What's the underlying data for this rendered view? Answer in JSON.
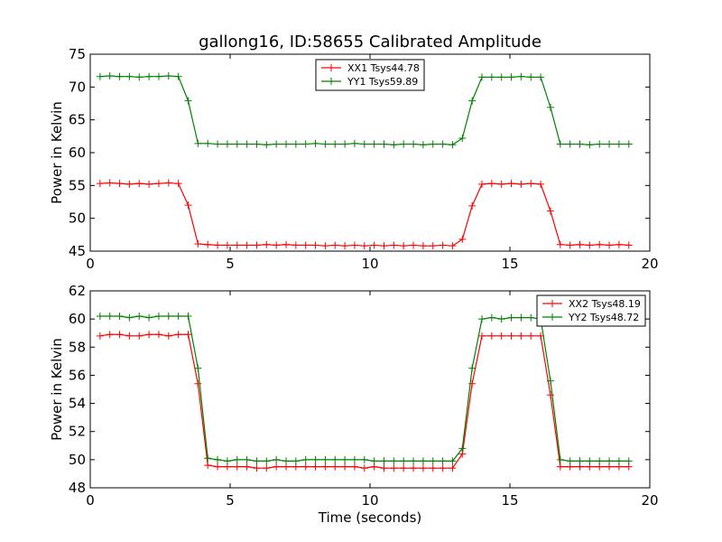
{
  "figure": {
    "title": "gallong16, ID:58655 Calibrated Amplitude"
  },
  "chart_data": [
    {
      "type": "line",
      "title": "gallong16, ID:58655 Calibrated Amplitude",
      "xlabel": "",
      "ylabel": "Power in Kelvin",
      "xlim": [
        0,
        20
      ],
      "ylim": [
        45,
        75
      ],
      "xticks": [
        0,
        5,
        10,
        15,
        20
      ],
      "yticks": [
        45,
        50,
        55,
        60,
        65,
        70,
        75
      ],
      "grid": false,
      "legend_position": "top-center",
      "x": [
        0.35,
        0.7,
        1.05,
        1.4,
        1.75,
        2.1,
        2.45,
        2.8,
        3.15,
        3.5,
        3.85,
        4.2,
        4.55,
        4.9,
        5.25,
        5.6,
        5.95,
        6.3,
        6.65,
        7.0,
        7.35,
        7.7,
        8.05,
        8.4,
        8.75,
        9.1,
        9.45,
        9.8,
        10.15,
        10.5,
        10.85,
        11.2,
        11.55,
        11.9,
        12.25,
        12.6,
        12.95,
        13.3,
        13.65,
        14.0,
        14.35,
        14.7,
        15.05,
        15.4,
        15.75,
        16.1,
        16.45,
        16.8,
        17.15,
        17.5,
        17.85,
        18.2,
        18.55,
        18.9,
        19.25
      ],
      "series": [
        {
          "name": "XX1 Tsys44.78",
          "color": "#ff0000",
          "values": [
            55.3,
            55.4,
            55.3,
            55.2,
            55.3,
            55.2,
            55.3,
            55.4,
            55.3,
            52.0,
            46.1,
            46.0,
            45.9,
            45.9,
            45.9,
            45.9,
            45.9,
            46.0,
            45.9,
            46.0,
            45.9,
            45.9,
            45.9,
            45.8,
            45.9,
            45.8,
            45.9,
            45.8,
            45.9,
            45.8,
            45.9,
            45.8,
            45.9,
            45.8,
            45.8,
            45.9,
            45.8,
            46.8,
            51.9,
            55.2,
            55.3,
            55.2,
            55.3,
            55.2,
            55.3,
            55.2,
            51.1,
            46.0,
            45.9,
            46.0,
            45.9,
            46.0,
            45.9,
            46.0,
            45.9
          ]
        },
        {
          "name": "YY1 Tsys59.89",
          "color": "#008000",
          "values": [
            71.6,
            71.7,
            71.6,
            71.6,
            71.5,
            71.6,
            71.6,
            71.7,
            71.6,
            67.9,
            61.4,
            61.4,
            61.3,
            61.3,
            61.3,
            61.3,
            61.3,
            61.2,
            61.3,
            61.3,
            61.3,
            61.3,
            61.4,
            61.3,
            61.3,
            61.3,
            61.4,
            61.3,
            61.3,
            61.3,
            61.2,
            61.3,
            61.3,
            61.2,
            61.3,
            61.3,
            61.2,
            62.2,
            67.9,
            71.5,
            71.5,
            71.5,
            71.5,
            71.6,
            71.5,
            71.5,
            66.9,
            61.3,
            61.3,
            61.3,
            61.2,
            61.3,
            61.3,
            61.3,
            61.3
          ]
        }
      ]
    },
    {
      "type": "line",
      "title": "",
      "xlabel": "Time (seconds)",
      "ylabel": "Power in Kelvin",
      "xlim": [
        0,
        20
      ],
      "ylim": [
        48,
        62
      ],
      "xticks": [
        0,
        5,
        10,
        15,
        20
      ],
      "yticks": [
        48,
        50,
        52,
        54,
        56,
        58,
        60,
        62
      ],
      "grid": false,
      "legend_position": "top-right",
      "x": [
        0.35,
        0.7,
        1.05,
        1.4,
        1.75,
        2.1,
        2.45,
        2.8,
        3.15,
        3.5,
        3.85,
        4.2,
        4.55,
        4.9,
        5.25,
        5.6,
        5.95,
        6.3,
        6.65,
        7.0,
        7.35,
        7.7,
        8.05,
        8.4,
        8.75,
        9.1,
        9.45,
        9.8,
        10.15,
        10.5,
        10.85,
        11.2,
        11.55,
        11.9,
        12.25,
        12.6,
        12.95,
        13.3,
        13.65,
        14.0,
        14.35,
        14.7,
        15.05,
        15.4,
        15.75,
        16.1,
        16.45,
        16.8,
        17.15,
        17.5,
        17.85,
        18.2,
        18.55,
        18.9,
        19.25
      ],
      "series": [
        {
          "name": "XX2 Tsys48.19",
          "color": "#ff0000",
          "values": [
            58.8,
            58.9,
            58.9,
            58.8,
            58.8,
            58.9,
            58.9,
            58.8,
            58.9,
            58.9,
            55.4,
            49.6,
            49.5,
            49.5,
            49.5,
            49.5,
            49.4,
            49.4,
            49.5,
            49.5,
            49.5,
            49.5,
            49.5,
            49.5,
            49.5,
            49.5,
            49.5,
            49.4,
            49.5,
            49.4,
            49.4,
            49.4,
            49.4,
            49.4,
            49.4,
            49.4,
            49.4,
            50.4,
            55.4,
            58.8,
            58.8,
            58.8,
            58.8,
            58.8,
            58.8,
            58.8,
            54.6,
            49.5,
            49.5,
            49.5,
            49.5,
            49.5,
            49.5,
            49.5,
            49.5
          ]
        },
        {
          "name": "YY2 Tsys48.72",
          "color": "#008000",
          "values": [
            60.2,
            60.2,
            60.2,
            60.1,
            60.2,
            60.1,
            60.2,
            60.2,
            60.2,
            60.2,
            56.5,
            50.1,
            50.0,
            49.9,
            50.0,
            50.0,
            49.9,
            49.9,
            50.0,
            49.9,
            49.9,
            50.0,
            50.0,
            50.0,
            50.0,
            50.0,
            50.0,
            50.0,
            49.9,
            49.9,
            49.9,
            49.9,
            49.9,
            49.9,
            49.9,
            49.9,
            49.9,
            50.8,
            56.5,
            60.0,
            60.1,
            60.0,
            60.1,
            60.1,
            60.1,
            60.0,
            55.6,
            50.0,
            49.9,
            49.9,
            49.9,
            49.9,
            49.9,
            49.9,
            49.9
          ]
        }
      ]
    }
  ]
}
